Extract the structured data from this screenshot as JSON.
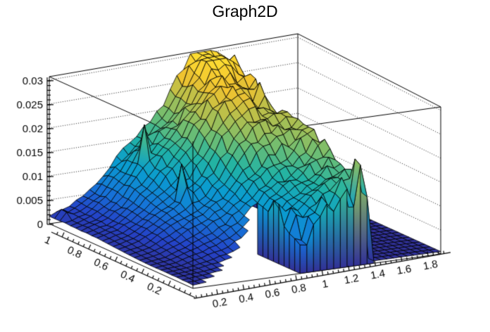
{
  "window": {
    "background": "#ffffff"
  },
  "chart_data": {
    "type": "surface3d",
    "title": "Graph2D",
    "x_axis": {
      "range": [
        0.0,
        1.88
      ],
      "major_ticks": [
        0.2,
        0.4,
        0.6,
        0.8,
        1.0,
        1.2,
        1.4,
        1.6,
        1.8
      ],
      "tick_labels": [
        "0.2",
        "0.4",
        "0.6",
        "0.8",
        "1",
        "1.2",
        "1.4",
        "1.6",
        "1.8"
      ],
      "minor_step": 0.04
    },
    "y_axis": {
      "range": [
        0.0,
        1.08
      ],
      "major_ticks": [
        1.0,
        0.8,
        0.6,
        0.4,
        0.2
      ],
      "tick_labels": [
        "1",
        "0.8",
        "0.6",
        "0.4",
        "0.2"
      ],
      "minor_step": 0.04
    },
    "z_axis": {
      "range": [
        0.0,
        0.0307
      ],
      "major_ticks": [
        0,
        0.005,
        0.01,
        0.015,
        0.02,
        0.025,
        0.03
      ],
      "tick_labels": [
        "0",
        "0.005",
        "0.01",
        "0.015",
        "0.02",
        "0.025",
        "0.03"
      ],
      "minor_step": 0.001
    },
    "surface": {
      "x_vals": [
        0,
        0.157,
        0.313,
        0.47,
        0.627,
        0.783,
        0.94,
        1.097,
        1.253,
        1.41,
        1.567,
        1.723,
        1.88
      ],
      "y_vals": [
        0,
        0.12,
        0.24,
        0.36,
        0.48,
        0.6,
        0.72,
        0.84,
        0.96,
        1.08
      ],
      "z_milli": [
        [
          0.7,
          0.9,
          1.4,
          2.0,
          2.9,
          4.5,
          9.5,
          13.5,
          15.5,
          0.5,
          0.5,
          0.5,
          0.5
        ],
        [
          0.8,
          1.1,
          1.7,
          2.7,
          3.9,
          6.8,
          11.5,
          15.5,
          17.5,
          0.5,
          0.5,
          0.5,
          0.5
        ],
        [
          0.8,
          1.2,
          2.3,
          3.5,
          5.4,
          8.3,
          13.0,
          17.0,
          19.0,
          0.5,
          0.5,
          0.5,
          0.5
        ],
        [
          0.9,
          1.5,
          2.9,
          4.7,
          7.0,
          10.3,
          14.5,
          18.5,
          20.5,
          0.5,
          0.5,
          0.5,
          0.5
        ],
        [
          1.1,
          1.9,
          3.7,
          6.0,
          9.0,
          12.4,
          17.0,
          20.8,
          22.0,
          0.5,
          0.5,
          0.5,
          0.5
        ],
        [
          1.2,
          2.3,
          4.5,
          7.4,
          10.9,
          15.0,
          19.8,
          23.0,
          23.5,
          0.5,
          0.5,
          0.5,
          0.5
        ],
        [
          1.4,
          2.7,
          5.2,
          8.6,
          12.7,
          17.4,
          22.6,
          26.0,
          25.5,
          0.5,
          0.5,
          0.5,
          0.5
        ],
        [
          1.5,
          3.0,
          5.8,
          9.5,
          14.0,
          19.2,
          25.0,
          28.5,
          27.8,
          0.5,
          0.5,
          0.5,
          0.5
        ],
        [
          1.6,
          3.2,
          6.0,
          9.9,
          14.6,
          20.0,
          26.0,
          30.0,
          29.0,
          0.5,
          0.5,
          0.5,
          0.5
        ],
        [
          1.6,
          3.1,
          5.9,
          9.8,
          14.4,
          19.7,
          25.6,
          29.6,
          28.6,
          0.5,
          0.5,
          0.5,
          0.5
        ]
      ]
    },
    "spikes": [
      {
        "x": 0.56,
        "y": 0.92,
        "h": 7.5,
        "r": 0.05
      },
      {
        "x": 0.56,
        "y": 0.63,
        "h": 8.0,
        "r": 0.05
      },
      {
        "x": 1.28,
        "y": 0.74,
        "h": 7.0,
        "r": 0.05
      },
      {
        "x": 0.8,
        "y": 0.18,
        "h": 9.0,
        "r": 0.045
      },
      {
        "x": 0.87,
        "y": 0.1,
        "h": 7.0,
        "r": 0.04
      },
      {
        "x": 0.05,
        "y": 1.02,
        "h": 2.2,
        "r": 0.05
      }
    ],
    "boundary": {
      "gap_x_start": 0.13,
      "gap_x_end": 0.8,
      "gap_y_top": 0.3,
      "cliff_x": 1.36,
      "floor_z_milli": 0.5
    },
    "palette": [
      [
        0.0,
        "#332f92"
      ],
      [
        0.1,
        "#2443c8"
      ],
      [
        0.22,
        "#1575d8"
      ],
      [
        0.36,
        "#0a9cd0"
      ],
      [
        0.5,
        "#21b3a5"
      ],
      [
        0.63,
        "#6fbe72"
      ],
      [
        0.76,
        "#b3bf4e"
      ],
      [
        0.88,
        "#f2c32f"
      ],
      [
        1.0,
        "#fee033"
      ]
    ],
    "mesh_color": "#000000",
    "grid_style": "dotted"
  }
}
